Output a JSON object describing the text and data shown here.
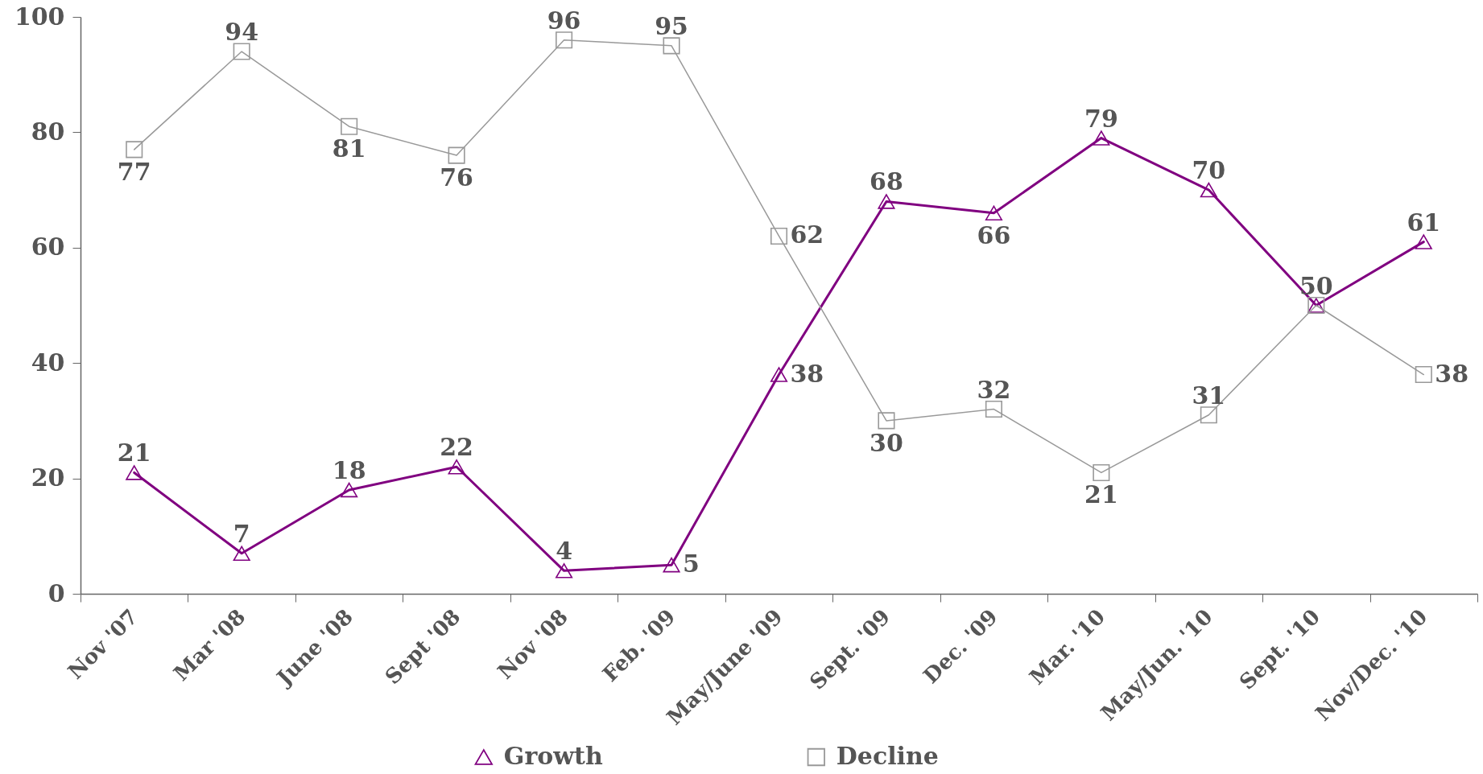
{
  "chart_data": {
    "type": "line",
    "categories": [
      "Nov '07",
      "Mar '08",
      "June '08",
      "Sept '08",
      "Nov '08",
      "Feb. '09",
      "May/June '09",
      "Sept. '09",
      "Dec. '09",
      "Mar. '10",
      "May/Jun. '10",
      "Sept. '10",
      "Nov/Dec. '10"
    ],
    "series": [
      {
        "name": "Growth",
        "color": "#800080",
        "marker": "triangle",
        "values": [
          21,
          7,
          18,
          22,
          4,
          5,
          38,
          68,
          66,
          79,
          70,
          50,
          61
        ],
        "value_labels": [
          "21",
          "7",
          "18",
          "22",
          "4",
          "5",
          "38",
          "68",
          "66",
          "79",
          "70",
          "50",
          "61"
        ]
      },
      {
        "name": "Decline",
        "color": "#999999",
        "marker": "square",
        "values": [
          77,
          94,
          81,
          76,
          96,
          95,
          62,
          30,
          32,
          21,
          31,
          50,
          38
        ],
        "value_labels": [
          "77",
          "94",
          "81",
          "76",
          "96",
          "95",
          "62",
          "30",
          "32",
          "21",
          "31",
          null,
          "38"
        ]
      }
    ],
    "ylim": [
      0,
      100
    ],
    "yticks": [
      0,
      20,
      40,
      60,
      80,
      100
    ],
    "grid": false,
    "legend": "bottom"
  }
}
